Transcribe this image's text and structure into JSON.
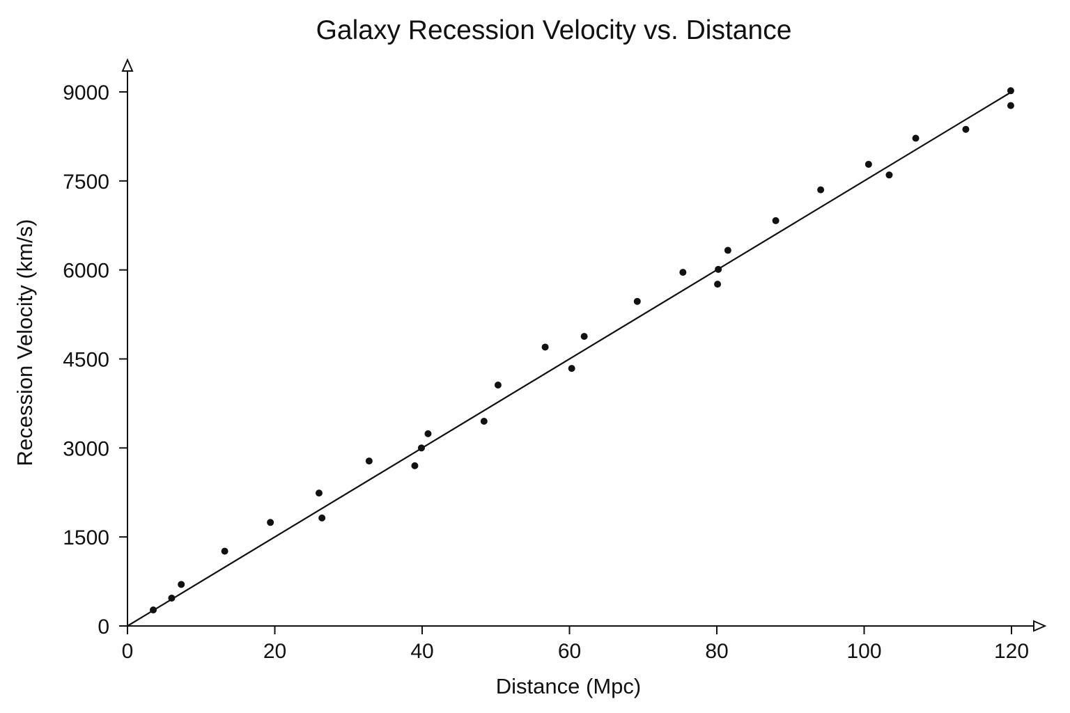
{
  "chart_data": {
    "type": "scatter",
    "title": "Galaxy Recession Velocity vs. Distance",
    "xlabel": "Distance (Mpc)",
    "ylabel": "Recession Velocity (km/s)",
    "xlim": [
      0,
      125
    ],
    "ylim": [
      0,
      9500
    ],
    "x_ticks": [
      0,
      20,
      40,
      60,
      80,
      100,
      120
    ],
    "y_ticks": [
      0,
      1500,
      3000,
      4500,
      6000,
      7500,
      9000
    ],
    "grid": false,
    "legend": "none",
    "series": [
      {
        "points": [
          {
            "x": 3.5,
            "y": 270
          },
          {
            "x": 6,
            "y": 470
          },
          {
            "x": 7.3,
            "y": 700
          },
          {
            "x": 13.2,
            "y": 1260
          },
          {
            "x": 19.4,
            "y": 1745
          },
          {
            "x": 26,
            "y": 2240
          },
          {
            "x": 26.4,
            "y": 1820
          },
          {
            "x": 32.8,
            "y": 2780
          },
          {
            "x": 39,
            "y": 2700
          },
          {
            "x": 39.9,
            "y": 3000
          },
          {
            "x": 40.8,
            "y": 3240
          },
          {
            "x": 48.4,
            "y": 3450
          },
          {
            "x": 50.3,
            "y": 4060
          },
          {
            "x": 56.7,
            "y": 4700
          },
          {
            "x": 60.3,
            "y": 4340
          },
          {
            "x": 62,
            "y": 4880
          },
          {
            "x": 69.2,
            "y": 5470
          },
          {
            "x": 75.4,
            "y": 5960
          },
          {
            "x": 80.1,
            "y": 5760
          },
          {
            "x": 80.2,
            "y": 6010
          },
          {
            "x": 81.5,
            "y": 6330
          },
          {
            "x": 88,
            "y": 6830
          },
          {
            "x": 94.1,
            "y": 7350
          },
          {
            "x": 100.6,
            "y": 7780
          },
          {
            "x": 103.4,
            "y": 7600
          },
          {
            "x": 107,
            "y": 8220
          },
          {
            "x": 113.8,
            "y": 8370
          },
          {
            "x": 119.9,
            "y": 9020
          },
          {
            "x": 119.9,
            "y": 8770
          }
        ]
      }
    ],
    "fit_line": {
      "type": "linear",
      "slope": 75,
      "intercept": 0,
      "x_range": [
        0,
        120
      ]
    }
  },
  "colors": {
    "ink": "#111111",
    "background": "#ffffff"
  }
}
